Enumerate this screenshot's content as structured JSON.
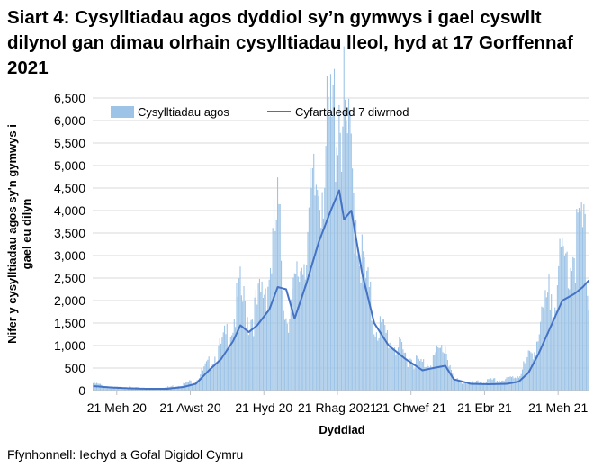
{
  "title": "Siart 4: Cysylltiadau agos dyddiol sy’n gymwys i gael cyswllt dilynol gan dimau olrhain cysylltiadau lleol, hyd at 17 Gorffennaf 2021",
  "source": "Ffynhonnell: Iechyd a Gofal Digidol Cymru",
  "colors": {
    "bars": "#9DC3E6",
    "line": "#4472C4",
    "grid": "#D9D9D9",
    "axis": "#BFBFBF"
  },
  "chart_data": {
    "type": "bar",
    "xlabel": "Dyddiad",
    "ylabel": "Nifer y cysylltiadau agos sy'n gymwys i gael eu dilyn",
    "ylim": [
      0,
      6500
    ],
    "yticks": [
      "0",
      "500",
      "1,000",
      "1,500",
      "2,000",
      "2,500",
      "3,000",
      "3,500",
      "4,000",
      "4,500",
      "5,000",
      "5,500",
      "6,000",
      "6,500"
    ],
    "xticks": [
      "21 Meh 20",
      "21 Awst 20",
      "21 Hyd 20",
      "21 Rhag 2021",
      "21 Chwef 21",
      "21 Ebr 21",
      "21 Meh 21"
    ],
    "x_range": [
      "2020-06-01",
      "2021-07-17"
    ],
    "legend_position": "top",
    "grid": true,
    "series": [
      {
        "name": "Cysylltiadau agos",
        "kind": "bar",
        "description": "daily close contacts",
        "anchors": [
          [
            "2020-06-01",
            140
          ],
          [
            "2020-06-15",
            60
          ],
          [
            "2020-07-01",
            60
          ],
          [
            "2020-07-15",
            40
          ],
          [
            "2020-08-01",
            60
          ],
          [
            "2020-08-15",
            120
          ],
          [
            "2020-08-25",
            200
          ],
          [
            "2020-09-05",
            500
          ],
          [
            "2020-09-15",
            800
          ],
          [
            "2020-09-25",
            1300
          ],
          [
            "2020-10-01",
            1800
          ],
          [
            "2020-10-08",
            1350
          ],
          [
            "2020-10-15",
            1550
          ],
          [
            "2020-10-25",
            2200
          ],
          [
            "2020-11-01",
            3300
          ],
          [
            "2020-11-08",
            1400
          ],
          [
            "2020-11-15",
            1800
          ],
          [
            "2020-11-25",
            2900
          ],
          [
            "2020-12-05",
            4000
          ],
          [
            "2020-12-15",
            4800
          ],
          [
            "2020-12-22",
            5600
          ],
          [
            "2021-01-01",
            4100
          ],
          [
            "2021-01-10",
            2400
          ],
          [
            "2021-01-20",
            1300
          ],
          [
            "2021-02-01",
            1000
          ],
          [
            "2021-02-15",
            650
          ],
          [
            "2021-03-01",
            500
          ],
          [
            "2021-03-10",
            600
          ],
          [
            "2021-03-20",
            850
          ],
          [
            "2021-03-27",
            200
          ],
          [
            "2021-04-10",
            130
          ],
          [
            "2021-04-25",
            180
          ],
          [
            "2021-05-10",
            200
          ],
          [
            "2021-05-20",
            300
          ],
          [
            "2021-05-28",
            600
          ],
          [
            "2021-06-05",
            1000
          ],
          [
            "2021-06-15",
            1800
          ],
          [
            "2021-06-25",
            2300
          ],
          [
            "2021-07-05",
            2700
          ],
          [
            "2021-07-12",
            3050
          ],
          [
            "2021-07-17",
            2000
          ]
        ]
      },
      {
        "name": "Cyfartaledd 7 diwrnod",
        "kind": "line",
        "description": "7-day average",
        "anchors": [
          [
            "2020-06-01",
            100
          ],
          [
            "2020-06-15",
            70
          ],
          [
            "2020-07-01",
            50
          ],
          [
            "2020-07-15",
            40
          ],
          [
            "2020-08-01",
            40
          ],
          [
            "2020-08-15",
            80
          ],
          [
            "2020-08-25",
            150
          ],
          [
            "2020-09-05",
            450
          ],
          [
            "2020-09-15",
            700
          ],
          [
            "2020-09-25",
            1100
          ],
          [
            "2020-10-01",
            1450
          ],
          [
            "2020-10-08",
            1300
          ],
          [
            "2020-10-15",
            1450
          ],
          [
            "2020-10-25",
            1800
          ],
          [
            "2020-11-01",
            2300
          ],
          [
            "2020-11-08",
            2250
          ],
          [
            "2020-11-15",
            1600
          ],
          [
            "2020-11-25",
            2400
          ],
          [
            "2020-12-05",
            3300
          ],
          [
            "2020-12-15",
            4000
          ],
          [
            "2020-12-22",
            4450
          ],
          [
            "2020-12-26",
            3800
          ],
          [
            "2021-01-01",
            4000
          ],
          [
            "2021-01-10",
            2600
          ],
          [
            "2021-01-20",
            1500
          ],
          [
            "2021-02-01",
            1000
          ],
          [
            "2021-02-15",
            700
          ],
          [
            "2021-03-01",
            450
          ],
          [
            "2021-03-10",
            500
          ],
          [
            "2021-03-20",
            550
          ],
          [
            "2021-03-27",
            250
          ],
          [
            "2021-04-10",
            150
          ],
          [
            "2021-04-25",
            140
          ],
          [
            "2021-05-10",
            150
          ],
          [
            "2021-05-20",
            200
          ],
          [
            "2021-05-28",
            400
          ],
          [
            "2021-06-05",
            800
          ],
          [
            "2021-06-15",
            1400
          ],
          [
            "2021-06-25",
            2000
          ],
          [
            "2021-07-05",
            2150
          ],
          [
            "2021-07-12",
            2300
          ],
          [
            "2021-07-17",
            2450
          ]
        ]
      }
    ]
  }
}
